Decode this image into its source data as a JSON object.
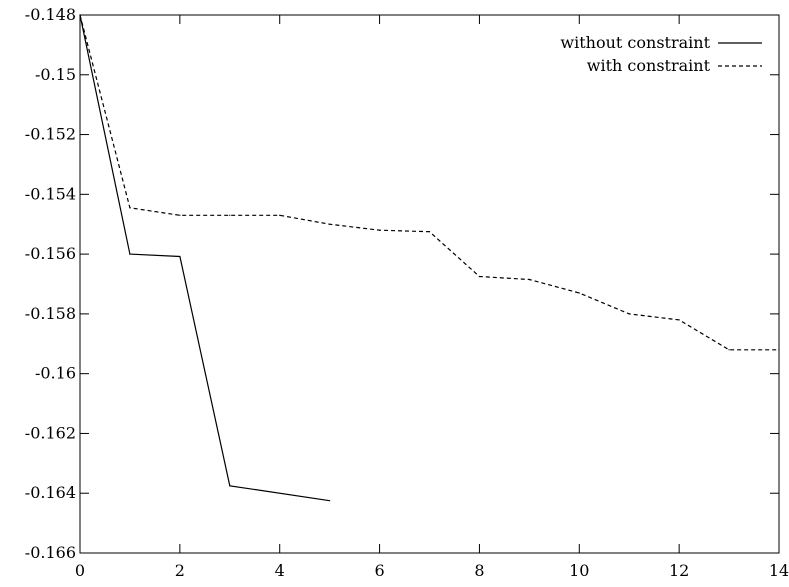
{
  "chart_data": {
    "type": "line",
    "title": "",
    "xlabel": "",
    "ylabel": "",
    "xlim": [
      0,
      14
    ],
    "ylim": [
      -0.166,
      -0.148
    ],
    "grid": false,
    "legend_position": "top-right",
    "x_ticks": [
      0,
      2,
      4,
      6,
      8,
      10,
      12,
      14
    ],
    "x_tick_labels": [
      "0",
      "2",
      "4",
      "6",
      "8",
      "10",
      "12",
      "14"
    ],
    "y_ticks": [
      -0.148,
      -0.15,
      -0.152,
      -0.154,
      -0.156,
      -0.158,
      -0.16,
      -0.162,
      -0.164,
      -0.166
    ],
    "y_tick_labels": [
      "-0.148",
      "-0.15",
      "-0.152",
      "-0.154",
      "-0.156",
      "-0.158",
      "-0.16",
      "-0.162",
      "-0.164",
      "-0.166"
    ],
    "series": [
      {
        "name": "without constraint",
        "style": "solid",
        "color": "#000000",
        "x": [
          0,
          1,
          2,
          3,
          5
        ],
        "y": [
          -0.148,
          -0.156,
          -0.15608,
          -0.16375,
          -0.16425
        ]
      },
      {
        "name": "with constraint",
        "style": "dashed",
        "color": "#000000",
        "x": [
          0,
          1,
          2,
          3,
          4,
          5,
          6,
          7,
          8,
          9,
          10,
          11,
          12,
          13,
          14
        ],
        "y": [
          -0.148,
          -0.15445,
          -0.1547,
          -0.1547,
          -0.1547,
          -0.155,
          -0.1552,
          -0.15525,
          -0.15675,
          -0.15685,
          -0.1573,
          -0.158,
          -0.1582,
          -0.1592,
          -0.1592
        ]
      }
    ]
  }
}
